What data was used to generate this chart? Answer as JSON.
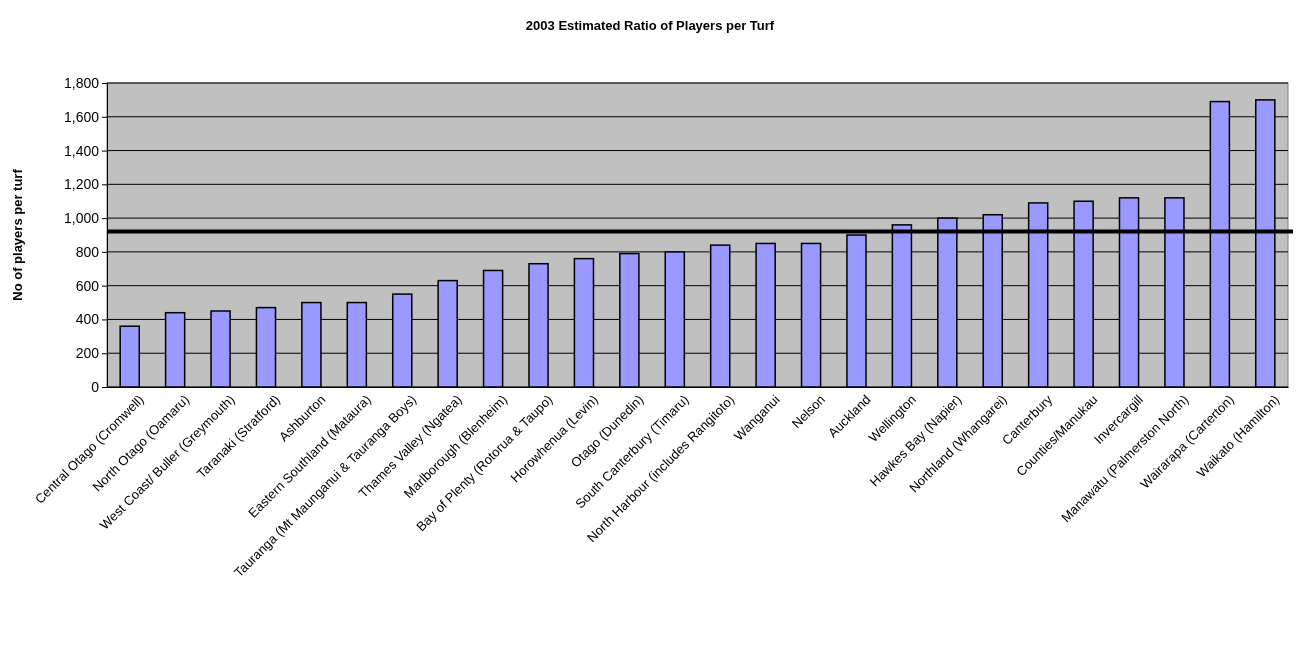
{
  "chart_data": {
    "type": "bar",
    "title": "2003 Estimated Ratio of Players per Turf",
    "ylabel": "No of players per turf",
    "categories": [
      "Central Otago (Cromwell)",
      "North Otago (Oamaru)",
      "West Coast/ Buller (Greymouth)",
      "Taranaki (Stratford)",
      "Ashburton",
      "Eastern Southland (Mataura)",
      "Tauranga (Mt Maunganui & Tauranga Boys)",
      "Thames Valley (Ngatea)",
      "Marlborough (Blenheim)",
      "Bay of Plenty (Rotorua & Taupo)",
      "Horowhenua (Levin)",
      "Otago (Dunedin)",
      "South Canterbury (Timaru)",
      "North Harbour (includes Rangitoto)",
      "Wanganui",
      "Nelson",
      "Auckland",
      "Wellington",
      "Hawkes Bay (Napier)",
      "Northland (Whangarei)",
      "Canterbury",
      "Counties/Manukau",
      "Invercargill",
      "Manawatu (Palmerston North)",
      "Wairarapa (Carterton)",
      "Waikato (Hamilton)"
    ],
    "values": [
      360,
      440,
      450,
      470,
      500,
      500,
      550,
      630,
      690,
      730,
      760,
      790,
      800,
      840,
      850,
      850,
      900,
      960,
      1000,
      1020,
      1090,
      1100,
      1120,
      1120,
      1690,
      1700
    ],
    "color": "#9999ff",
    "ylim": [
      0,
      1800
    ],
    "yticks": [
      {
        "value": 0,
        "label": "0"
      },
      {
        "value": 200,
        "label": "200"
      },
      {
        "value": 400,
        "label": "400"
      },
      {
        "value": 600,
        "label": "600"
      },
      {
        "value": 800,
        "label": "800"
      },
      {
        "value": 1000,
        "label": "1,000"
      },
      {
        "value": 1200,
        "label": "1,200"
      },
      {
        "value": 1400,
        "label": "1,400"
      },
      {
        "value": 1600,
        "label": "1,600"
      },
      {
        "value": 1800,
        "label": "1,800"
      }
    ],
    "grid": "y",
    "ref_lines": [
      {
        "axis": "y",
        "value": 920,
        "color": "#000000"
      }
    ]
  }
}
